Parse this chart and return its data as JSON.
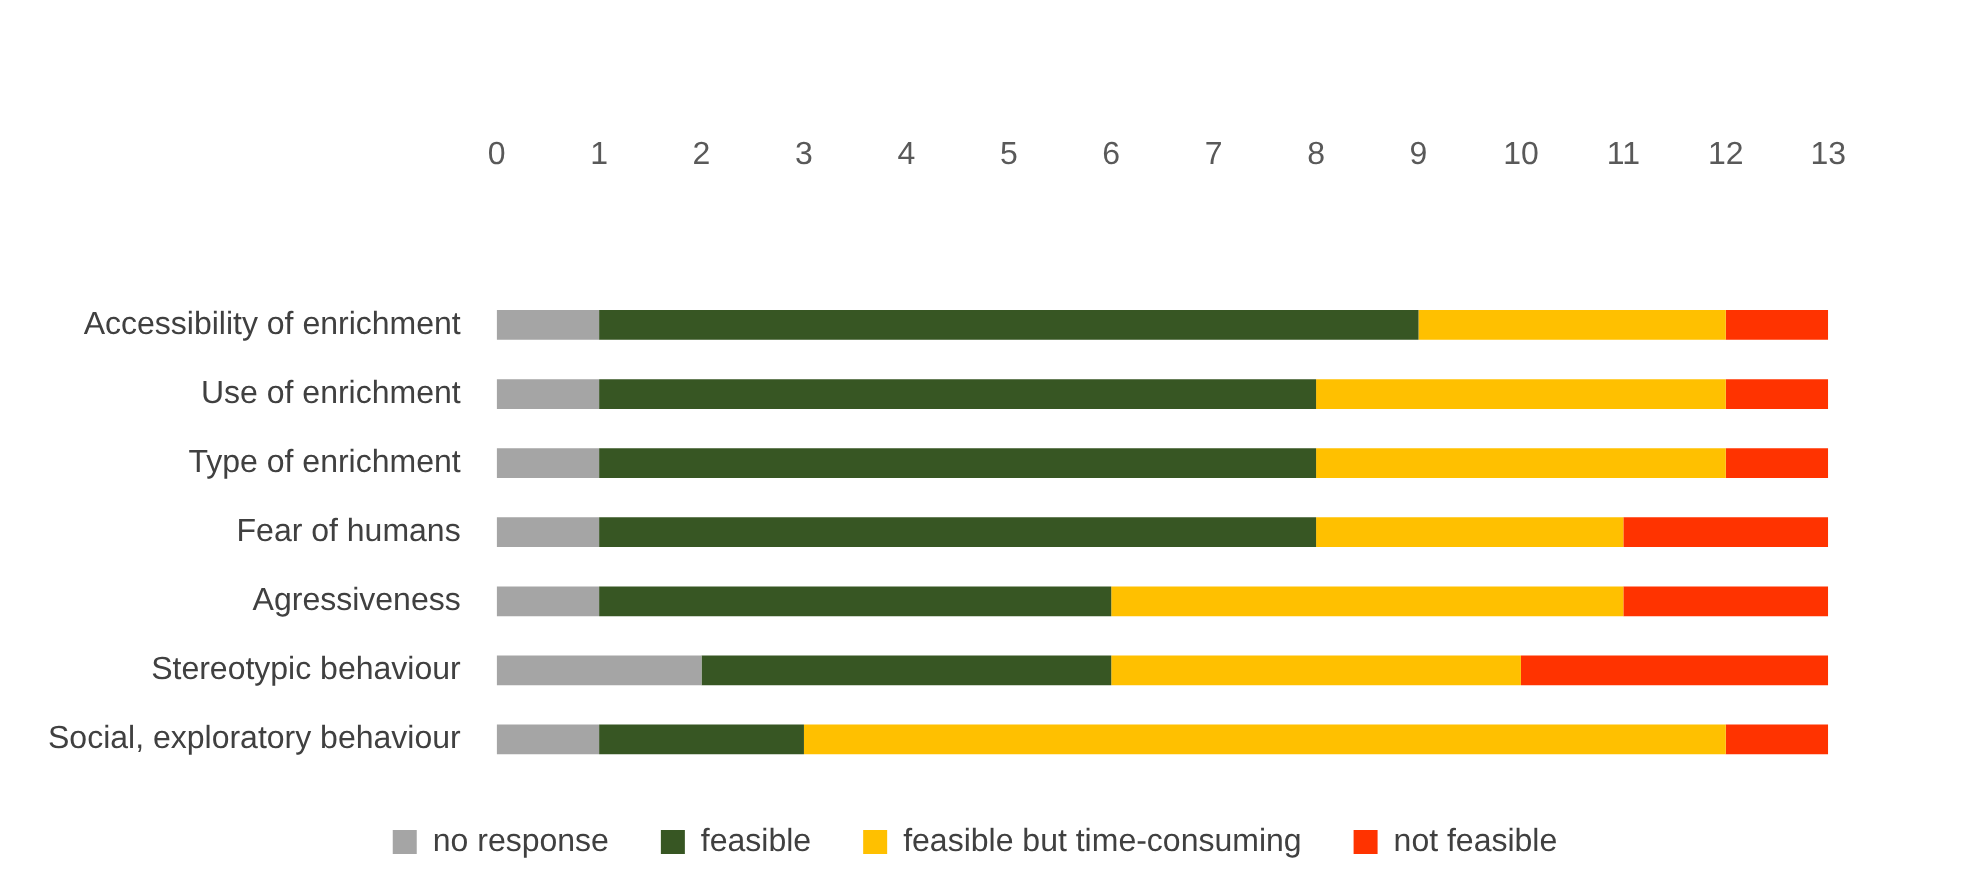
{
  "chart_data": {
    "type": "bar",
    "orientation": "horizontal",
    "stacked": true,
    "categories": [
      "Accessibility of enrichment",
      "Use of enrichment",
      "Type of enrichment",
      "Fear of humans",
      "Agressiveness",
      "Stereotypic behaviour",
      "Social, exploratory behaviour"
    ],
    "series": [
      {
        "name": "no response",
        "color": "#a5a5a5",
        "values": [
          1,
          1,
          1,
          1,
          1,
          2,
          1
        ]
      },
      {
        "name": "feasible",
        "color": "#375623",
        "values": [
          8,
          7,
          7,
          7,
          5,
          4,
          2
        ]
      },
      {
        "name": "feasible but time-consuming",
        "color": "#ffc000",
        "values": [
          3,
          4,
          4,
          3,
          5,
          4,
          9
        ]
      },
      {
        "name": "not feasible",
        "color": "#ff3300",
        "values": [
          1,
          1,
          1,
          2,
          2,
          3,
          1
        ]
      }
    ],
    "xlim": [
      0,
      13
    ],
    "xticks": [
      0,
      1,
      2,
      3,
      4,
      5,
      6,
      7,
      8,
      9,
      10,
      11,
      12,
      13
    ],
    "grid": false,
    "legend": "bottom"
  }
}
